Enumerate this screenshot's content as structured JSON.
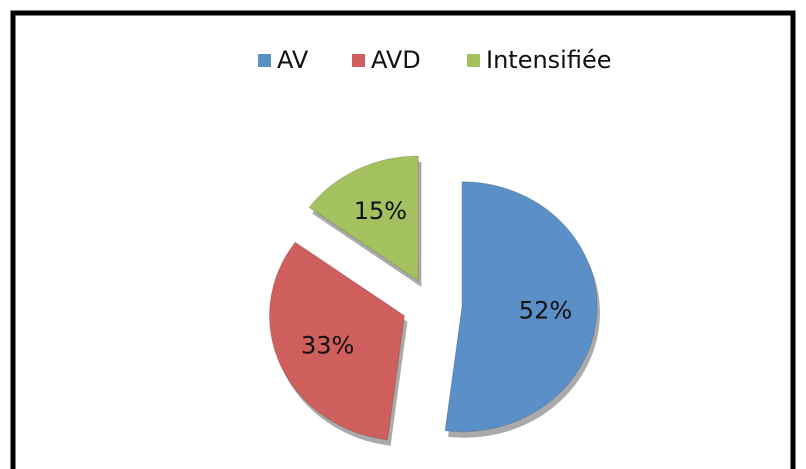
{
  "chart_data": {
    "type": "pie",
    "categories": [
      "AV",
      "AVD",
      "Intensifiée"
    ],
    "values": [
      52,
      33,
      15
    ],
    "value_labels": [
      "52%",
      "33%",
      "15%"
    ],
    "colors": [
      "#5b8fc7",
      "#cf5f5c",
      "#a3c15f"
    ],
    "legend": "top"
  }
}
